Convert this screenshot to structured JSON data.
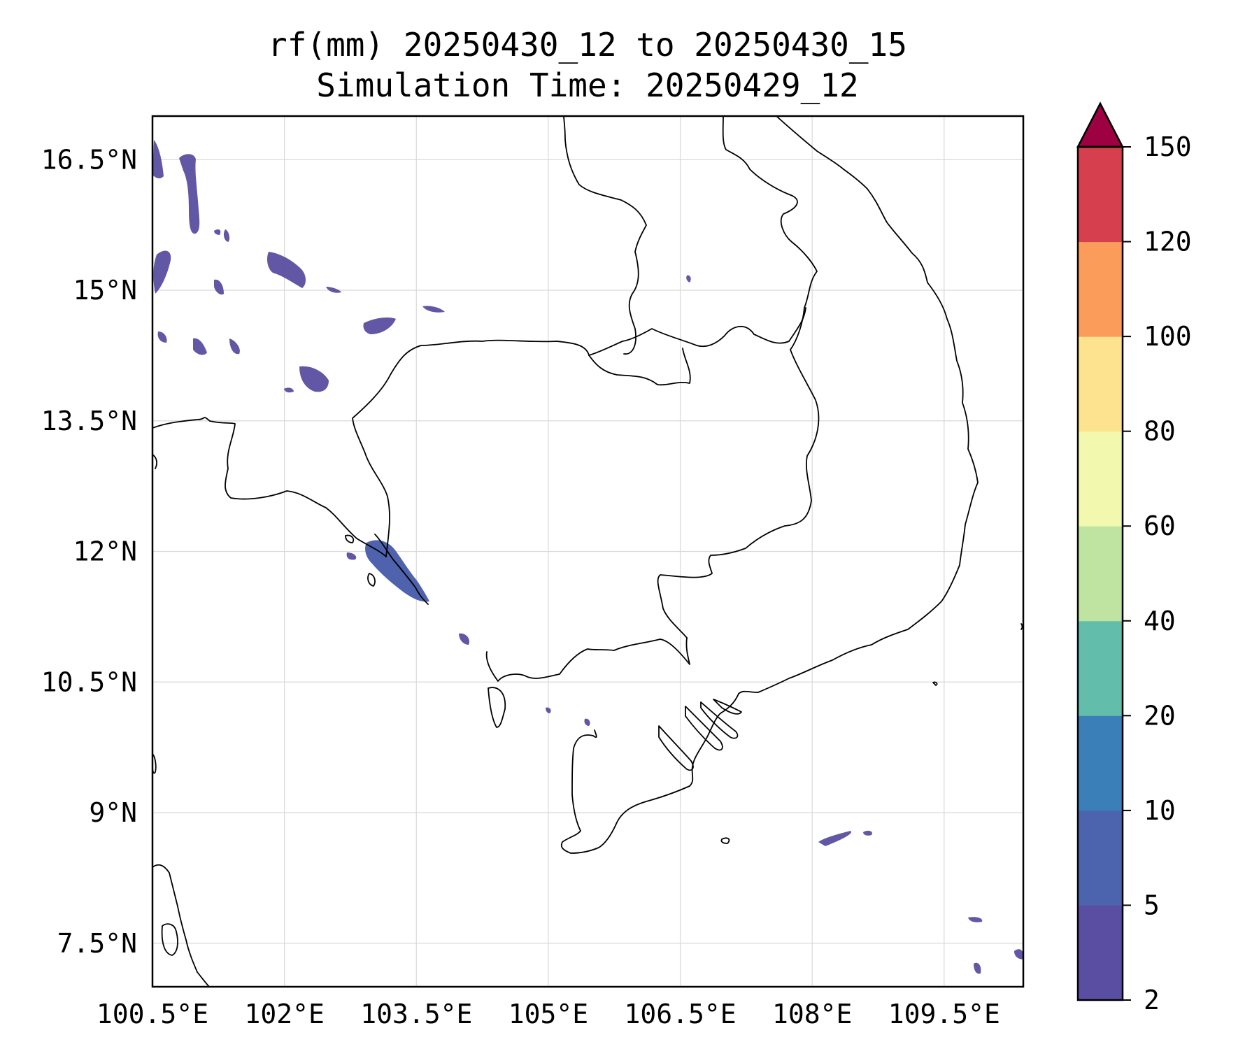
{
  "title": {
    "line1": "rf(mm) 20250430_12 to 20250430_15",
    "line2": "Simulation Time: 20250429_12"
  },
  "map": {
    "x_ticks": [
      "100.5°E",
      "102°E",
      "103.5°E",
      "105°E",
      "106.5°E",
      "108°E",
      "109.5°E"
    ],
    "y_ticks": [
      "16.5°N",
      "15°N",
      "13.5°N",
      "12°N",
      "10.5°N",
      "9°N",
      "7.5°N"
    ],
    "lon_values": [
      100.5,
      102,
      103.5,
      105,
      106.5,
      108,
      109.5
    ],
    "lat_values": [
      16.5,
      15,
      13.5,
      12,
      10.5,
      9,
      7.5
    ],
    "lon_range": [
      100.5,
      110.4
    ],
    "lat_range": [
      7.0,
      17.0
    ],
    "gridlines": true
  },
  "colorbar": {
    "labels": [
      "2",
      "5",
      "10",
      "20",
      "40",
      "60",
      "80",
      "100",
      "120",
      "150"
    ],
    "levels": [
      2,
      5,
      10,
      20,
      40,
      60,
      80,
      100,
      120,
      150
    ],
    "colors": [
      "#5a4ea2",
      "#4c63ad",
      "#3a7fb8",
      "#62bdaa",
      "#bfe3a0",
      "#f2f9ae",
      "#fde28f",
      "#fb9c5b",
      "#d63f4e"
    ],
    "extend_color": "#9e0142",
    "extend": "max"
  }
}
